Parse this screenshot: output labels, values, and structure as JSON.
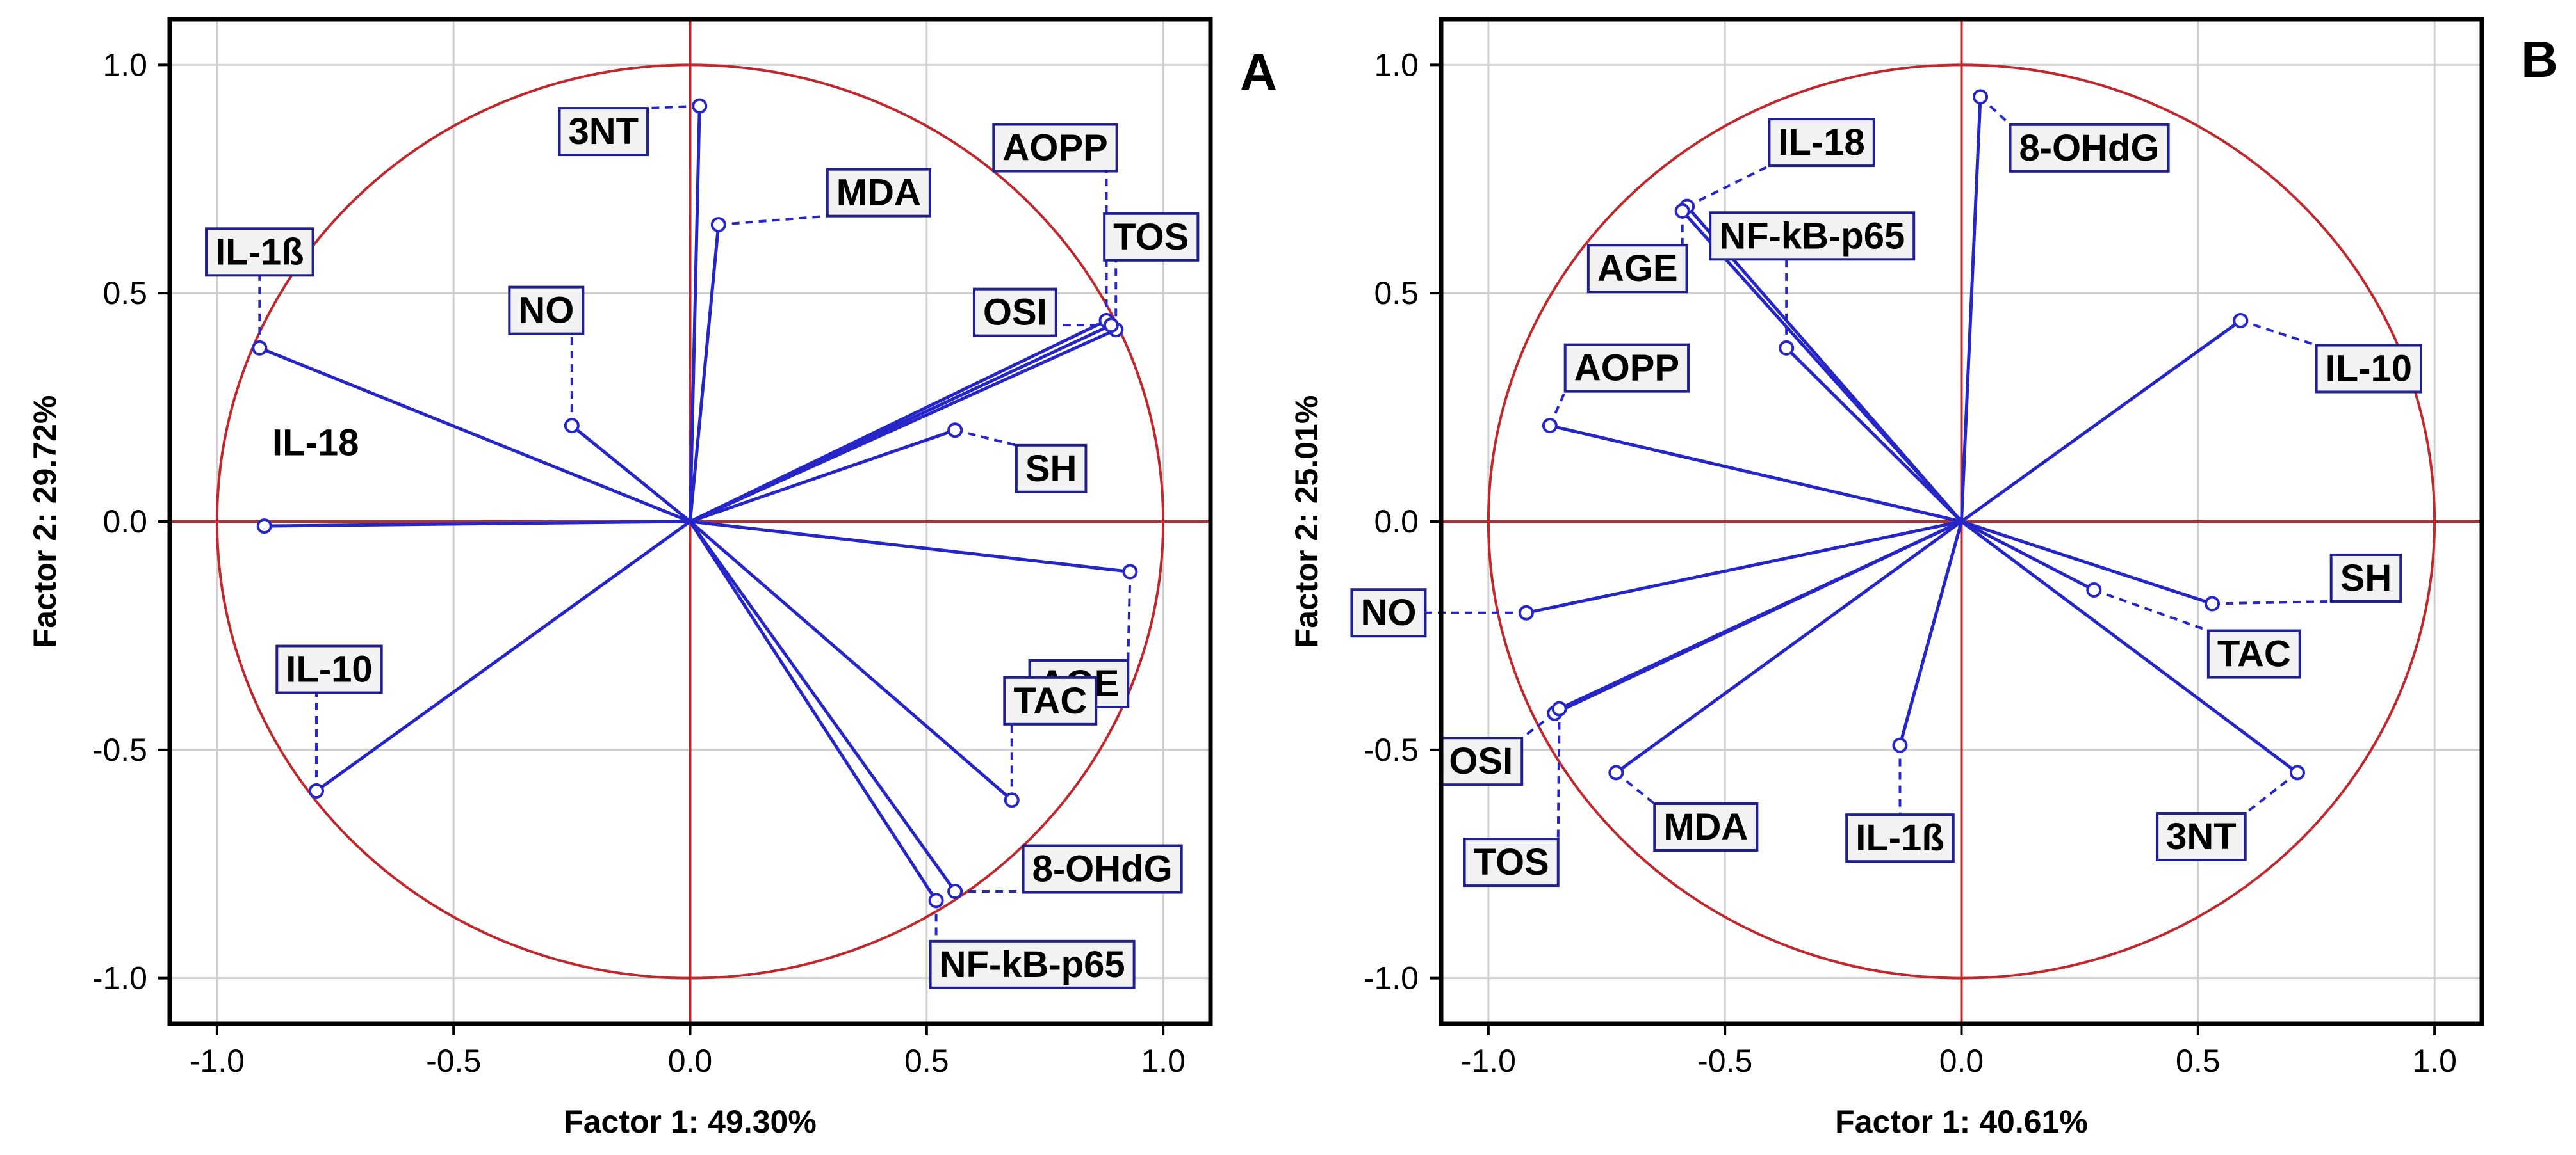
{
  "colors": {
    "vector": "#2626c8",
    "circle": "#c0282d",
    "grid": "#cfcfcf",
    "label_border": "#1f1f8f",
    "label_fill": "#f2f2f2"
  },
  "chart_data": [
    {
      "type": "scatter",
      "panel": "A",
      "title": "",
      "xlabel": "Factor 1: 49.30%",
      "ylabel": "Factor 2: 29.72%",
      "xlim": [
        -1.1,
        1.1
      ],
      "ylim": [
        -1.1,
        1.1
      ],
      "xticks": [
        "-1.0",
        "-0.5",
        "0.0",
        "0.5",
        "1.0"
      ],
      "yticks": [
        "-1.0",
        "-0.5",
        "0.0",
        "0.5",
        "1.0"
      ],
      "grid": true,
      "unit_circle": true,
      "points": [
        {
          "name": "3NT",
          "x": 0.02,
          "y": 0.91
        },
        {
          "name": "MDA",
          "x": 0.06,
          "y": 0.65
        },
        {
          "name": "AOPP",
          "x": 0.88,
          "y": 0.44
        },
        {
          "name": "TOS",
          "x": 0.9,
          "y": 0.42
        },
        {
          "name": "OSI",
          "x": 0.89,
          "y": 0.43
        },
        {
          "name": "IL-1ß",
          "x": -0.91,
          "y": 0.38
        },
        {
          "name": "NO",
          "x": -0.25,
          "y": 0.21
        },
        {
          "name": "SH",
          "x": 0.56,
          "y": 0.2
        },
        {
          "name": "IL-18",
          "x": -0.9,
          "y": -0.01
        },
        {
          "name": "AGE",
          "x": 0.93,
          "y": -0.11
        },
        {
          "name": "TAC",
          "x": 0.68,
          "y": -0.61
        },
        {
          "name": "IL-10",
          "x": -0.79,
          "y": -0.59
        },
        {
          "name": "8-OHdG",
          "x": 0.56,
          "y": -0.81
        },
        {
          "name": "NF-kB-p65",
          "x": 0.52,
          "y": -0.83
        }
      ]
    },
    {
      "type": "scatter",
      "panel": "B",
      "title": "",
      "xlabel": "Factor 1: 40.61%",
      "ylabel": "Factor 2: 25.01%",
      "xlim": [
        -1.1,
        1.1
      ],
      "ylim": [
        -1.1,
        1.1
      ],
      "xticks": [
        "-1.0",
        "-0.5",
        "0.0",
        "0.5",
        "1.0"
      ],
      "yticks": [
        "-1.0",
        "-0.5",
        "0.0",
        "0.5",
        "1.0"
      ],
      "grid": true,
      "unit_circle": true,
      "points": [
        {
          "name": "8-OHdG",
          "x": 0.04,
          "y": 0.93
        },
        {
          "name": "IL-18",
          "x": -0.58,
          "y": 0.69
        },
        {
          "name": "AGE",
          "x": -0.59,
          "y": 0.68
        },
        {
          "name": "NF-kB-p65",
          "x": -0.37,
          "y": 0.38
        },
        {
          "name": "IL-10",
          "x": 0.59,
          "y": 0.44
        },
        {
          "name": "AOPP",
          "x": -0.87,
          "y": 0.21
        },
        {
          "name": "SH",
          "x": 0.53,
          "y": -0.18
        },
        {
          "name": "TAC",
          "x": 0.28,
          "y": -0.15
        },
        {
          "name": "NO",
          "x": -0.92,
          "y": -0.2
        },
        {
          "name": "OSI",
          "x": -0.86,
          "y": -0.42
        },
        {
          "name": "TOS",
          "x": -0.85,
          "y": -0.41
        },
        {
          "name": "MDA",
          "x": -0.73,
          "y": -0.55
        },
        {
          "name": "IL-1ß",
          "x": -0.13,
          "y": -0.49
        },
        {
          "name": "3NT",
          "x": 0.71,
          "y": -0.55
        }
      ]
    }
  ]
}
